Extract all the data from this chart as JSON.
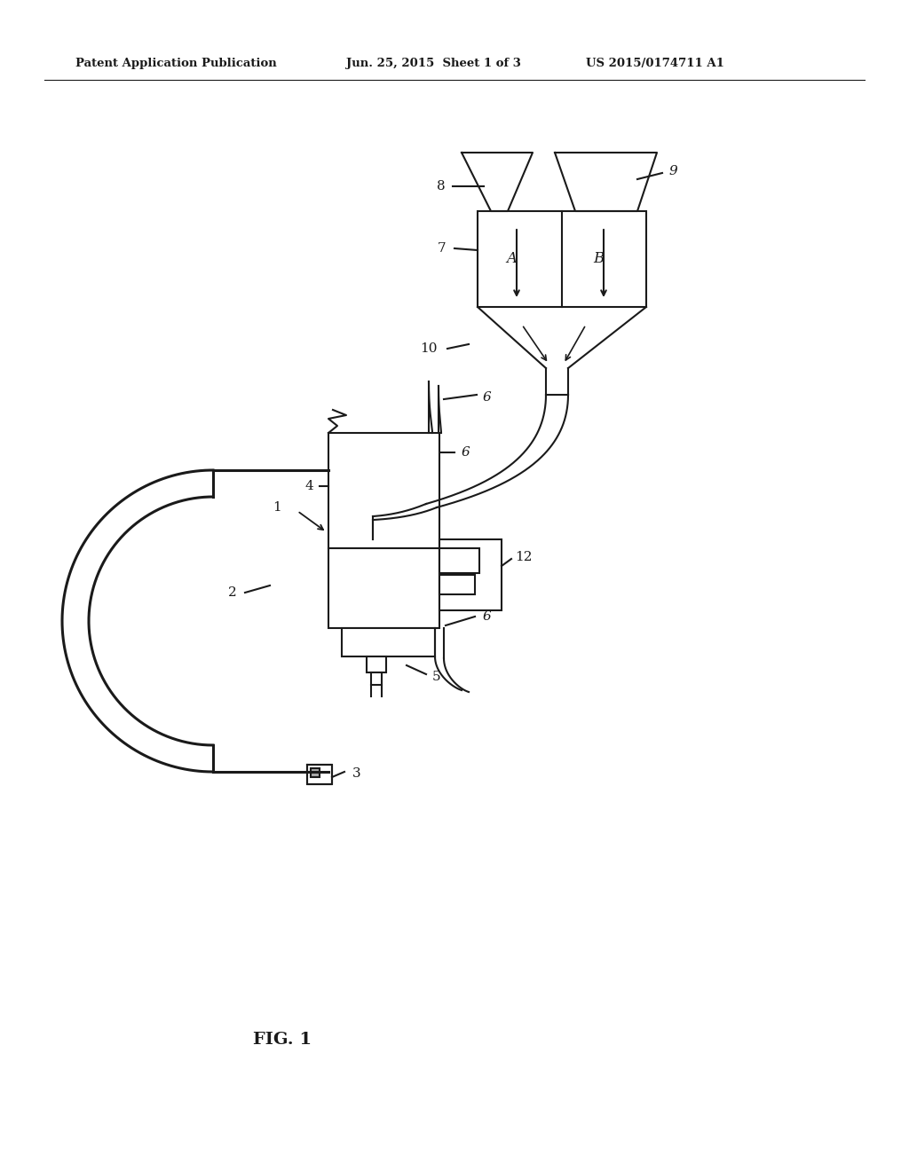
{
  "bg_color": "#ffffff",
  "line_color": "#1a1a1a",
  "header_left": "Patent Application Publication",
  "header_mid": "Jun. 25, 2015  Sheet 1 of 3",
  "header_right": "US 2015/0174711 A1",
  "fig_label": "FIG. 1",
  "label_fontsize": 11,
  "header_fontsize": 9.5
}
